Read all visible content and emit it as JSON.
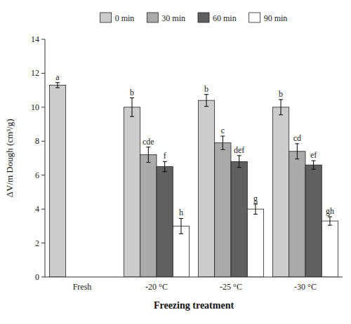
{
  "chart_data": {
    "type": "bar",
    "categories": [
      "Fresh",
      "-20 °C",
      "-25 °C",
      "-30 °C"
    ],
    "series": [
      {
        "name": "0 min",
        "color": "#cccccc",
        "values": [
          11.3,
          10.0,
          10.4,
          10.0
        ],
        "errors": [
          0.15,
          0.55,
          0.35,
          0.45
        ],
        "annotations": [
          "a",
          "b",
          "b",
          "b"
        ]
      },
      {
        "name": "30 min",
        "color": "#aaaaaa",
        "values": [
          null,
          7.2,
          7.9,
          7.4
        ],
        "errors": [
          null,
          0.45,
          0.4,
          0.45
        ],
        "annotations": [
          null,
          "cde",
          "c",
          "cd"
        ]
      },
      {
        "name": "60 min",
        "color": "#606060",
        "values": [
          null,
          6.5,
          6.8,
          6.6
        ],
        "errors": [
          null,
          0.3,
          0.35,
          0.25
        ],
        "annotations": [
          null,
          "f",
          "def",
          "ef"
        ]
      },
      {
        "name": "90 min",
        "color": "#ffffff",
        "values": [
          null,
          3.0,
          4.0,
          3.3
        ],
        "errors": [
          null,
          0.45,
          0.3,
          0.25
        ],
        "annotations": [
          null,
          "h",
          "g",
          "gh"
        ]
      }
    ],
    "xlabel": "Freezing treatment",
    "ylabel": "ΔV/m Dough (cm³/g)",
    "ylim": [
      0,
      14
    ],
    "yticks": [
      0,
      2,
      4,
      6,
      8,
      10,
      12,
      14
    ],
    "grid": false,
    "legend": "top"
  }
}
